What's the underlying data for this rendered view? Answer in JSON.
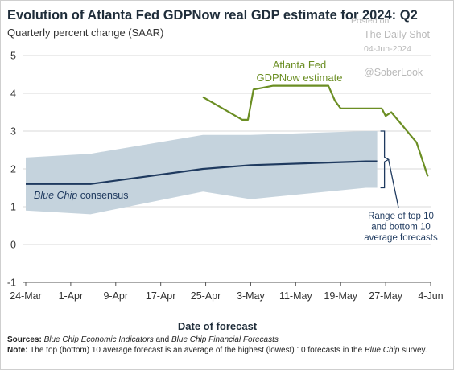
{
  "header": {
    "title": "Evolution of Atlanta Fed GDPNow real GDP estimate for 2024: Q2",
    "subtitle": "Quarterly percent change (SAAR)"
  },
  "watermark": {
    "posted": "Posted on",
    "source": "The Daily Shot",
    "date": "04-Jun-2024",
    "handle": "@SoberLook"
  },
  "footer": {
    "sources_label": "Sources:",
    "sources_part1": "Blue Chip Economic Indicators",
    "sources_and": " and ",
    "sources_part2": "Blue Chip Financial Forecasts",
    "note_label": "Note:",
    "note_text": " The top (bottom) 10 average forecast is an average of the highest (lowest) 10 forecasts in the ",
    "note_italic": "Blue Chip",
    "note_end": " survey."
  },
  "colors": {
    "gdpnow": "#6b8e23",
    "consensus": "#1f3a5f",
    "band": "#c5d3dd",
    "bracket": "#1f3a5f"
  },
  "chart_data": {
    "type": "line",
    "xlabel": "Date of forecast",
    "ylabel": "",
    "ylim": [
      -1,
      5
    ],
    "yticks": [
      -1,
      0,
      1,
      2,
      3,
      4,
      5
    ],
    "grid": true,
    "x_ticks": [
      {
        "label": "24-Mar",
        "day": 0
      },
      {
        "label": "1-Apr",
        "day": 8
      },
      {
        "label": "9-Apr",
        "day": 16
      },
      {
        "label": "17-Apr",
        "day": 24
      },
      {
        "label": "25-Apr",
        "day": 32
      },
      {
        "label": "3-May",
        "day": 40
      },
      {
        "label": "11-May",
        "day": 48
      },
      {
        "label": "19-May",
        "day": 56
      },
      {
        "label": "27-May",
        "day": 64
      },
      {
        "label": "4-Jun",
        "day": 72
      }
    ],
    "series": [
      {
        "name": "Atlanta Fed GDPNow estimate",
        "label_lines": [
          "Atlanta Fed",
          "GDPNow estimate"
        ],
        "points": [
          {
            "day": 31.5,
            "y": 3.9
          },
          {
            "day": 38.5,
            "y": 3.3
          },
          {
            "day": 39.5,
            "y": 3.3
          },
          {
            "day": 40.5,
            "y": 4.1
          },
          {
            "day": 44,
            "y": 4.2
          },
          {
            "day": 51.5,
            "y": 4.2
          },
          {
            "day": 53.8,
            "y": 4.2
          },
          {
            "day": 55,
            "y": 3.8
          },
          {
            "day": 56,
            "y": 3.6
          },
          {
            "day": 59,
            "y": 3.6
          },
          {
            "day": 63.3,
            "y": 3.6
          },
          {
            "day": 64,
            "y": 3.4
          },
          {
            "day": 65,
            "y": 3.5
          },
          {
            "day": 69.5,
            "y": 2.7
          },
          {
            "day": 71.5,
            "y": 1.8
          }
        ]
      },
      {
        "name": "Blue Chip consensus",
        "points": [
          {
            "day": 0,
            "y": 1.6
          },
          {
            "day": 11.5,
            "y": 1.6
          },
          {
            "day": 31.5,
            "y": 2.0
          },
          {
            "day": 40,
            "y": 2.1
          },
          {
            "day": 60.5,
            "y": 2.2
          },
          {
            "day": 62.5,
            "y": 2.2
          }
        ]
      }
    ],
    "band": {
      "name": "Range of top 10 and bottom 10 average forecasts",
      "label_lines": [
        "Range of top 10",
        "and bottom 10",
        "average forecasts"
      ],
      "upper": [
        {
          "day": 0,
          "y": 2.3
        },
        {
          "day": 11.5,
          "y": 2.4
        },
        {
          "day": 31.5,
          "y": 2.9
        },
        {
          "day": 40,
          "y": 2.9
        },
        {
          "day": 60.5,
          "y": 3.0
        },
        {
          "day": 62.5,
          "y": 3.0
        }
      ],
      "lower": [
        {
          "day": 0,
          "y": 0.9
        },
        {
          "day": 11.5,
          "y": 0.8
        },
        {
          "day": 31.5,
          "y": 1.4
        },
        {
          "day": 40,
          "y": 1.2
        },
        {
          "day": 60.5,
          "y": 1.5
        },
        {
          "day": 62.5,
          "y": 1.5
        }
      ]
    }
  }
}
